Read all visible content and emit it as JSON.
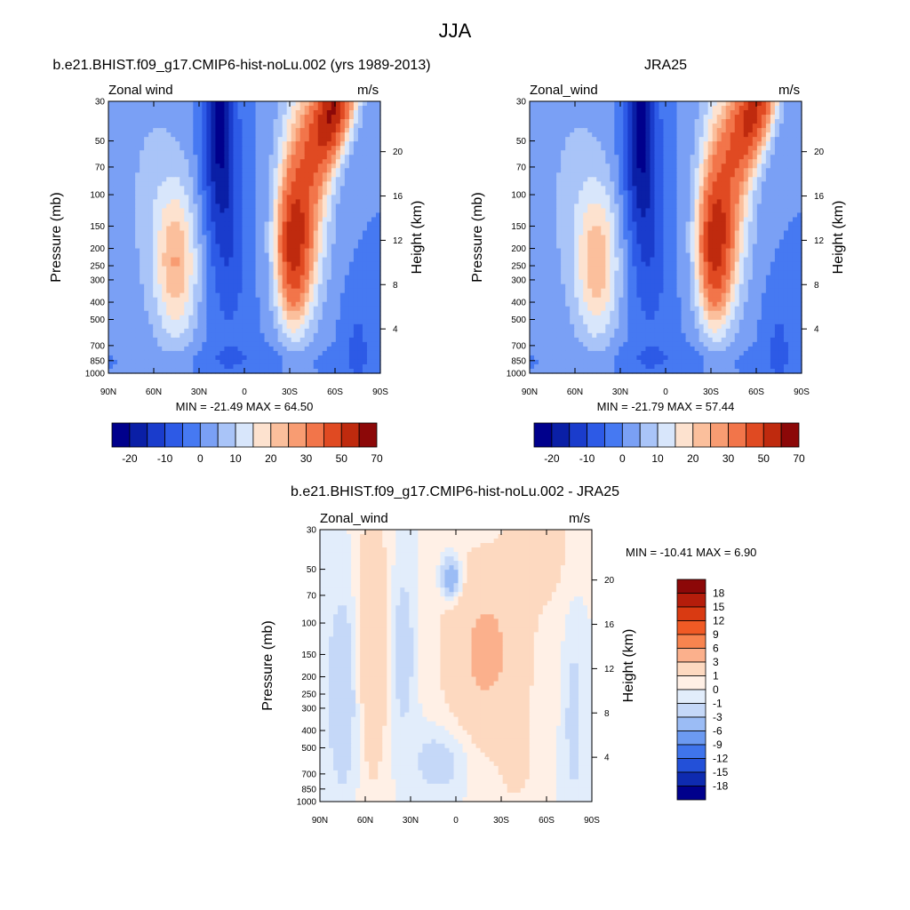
{
  "page_title": "JJA",
  "chart_data": [
    {
      "type": "heatmap",
      "title": "b.e21.BHIST.f09_g17.CMIP6-hist-noLu.002 (yrs 1989-2013)",
      "variable_label": "Zonal wind",
      "units_label": "m/s",
      "ylabel": "Pressure (mb)",
      "y2label": "Height (km)",
      "x_ticks": [
        "90N",
        "60N",
        "30N",
        "0",
        "30S",
        "60S",
        "90S"
      ],
      "y_ticks": [
        "30",
        "50",
        "70",
        "100",
        "150",
        "200",
        "250",
        "300",
        "400",
        "500",
        "700",
        "850",
        "1000"
      ],
      "y2_ticks": [
        "20",
        "16",
        "12",
        "8",
        "4"
      ],
      "min_max": "MIN = -21.49  MAX =  64.50",
      "min": -21.49,
      "max": 64.5,
      "colorbar_labels": [
        "-20",
        "-10",
        "0",
        "10",
        "20",
        "30",
        "50",
        "70"
      ],
      "jets": {
        "easterly_tropics_min": -21.49,
        "westerly_sh_jet_max": 64.5,
        "nh_jet_core": 22
      }
    },
    {
      "type": "heatmap",
      "title": "JRA25",
      "variable_label": "Zonal_wind",
      "units_label": "m/s",
      "ylabel": "Pressure (mb)",
      "y2label": "Height (km)",
      "x_ticks": [
        "90N",
        "60N",
        "30N",
        "0",
        "30S",
        "60S",
        "90S"
      ],
      "y_ticks": [
        "30",
        "50",
        "70",
        "100",
        "150",
        "200",
        "250",
        "300",
        "400",
        "500",
        "700",
        "850",
        "1000"
      ],
      "y2_ticks": [
        "20",
        "16",
        "12",
        "8",
        "4"
      ],
      "min_max": "MIN = -21.79  MAX =  57.44",
      "min": -21.79,
      "max": 57.44,
      "colorbar_labels": [
        "-20",
        "-10",
        "0",
        "10",
        "20",
        "30",
        "50",
        "70"
      ],
      "jets": {
        "easterly_tropics_min": -21.79,
        "westerly_sh_jet_max": 57.44,
        "nh_jet_core": 21
      }
    },
    {
      "type": "heatmap",
      "title": "b.e21.BHIST.f09_g17.CMIP6-hist-noLu.002 - JRA25",
      "variable_label": "Zonal_wind",
      "units_label": "m/s",
      "ylabel": "Pressure (mb)",
      "y2label": "Height (km)",
      "x_ticks": [
        "90N",
        "60N",
        "30N",
        "0",
        "30S",
        "60S",
        "90S"
      ],
      "y_ticks": [
        "30",
        "50",
        "70",
        "100",
        "150",
        "200",
        "250",
        "300",
        "400",
        "500",
        "700",
        "850",
        "1000"
      ],
      "y2_ticks": [
        "20",
        "16",
        "12",
        "8",
        "4"
      ],
      "min_max": "MIN = -10.41  MAX =   6.90",
      "min": -10.41,
      "max": 6.9,
      "colorbar_labels": [
        "18",
        "15",
        "12",
        "9",
        "6",
        "3",
        "1",
        "0",
        "-1",
        "-3",
        "-6",
        "-9",
        "-12",
        "-15",
        "-18"
      ]
    }
  ],
  "colors": {
    "abs_scale": [
      "#00008c",
      "#0a1fa6",
      "#1a3ccc",
      "#2d5ae6",
      "#4679f2",
      "#7aa0f5",
      "#a9c4f8",
      "#d8e6fb",
      "#fde2cf",
      "#fbbf9c",
      "#f89c72",
      "#f2754a",
      "#e04a22",
      "#bf2a0e",
      "#8c0808"
    ],
    "diff_scale": [
      "#8c0808",
      "#b51d0b",
      "#d93a12",
      "#f05a25",
      "#f8844f",
      "#fbb08c",
      "#fdd9c0",
      "#fff0e6",
      "#e2edfb",
      "#c5d8f8",
      "#9bbcf5",
      "#6c9af1",
      "#3f74ec",
      "#2350d8",
      "#0e2bb0",
      "#00008c"
    ]
  }
}
